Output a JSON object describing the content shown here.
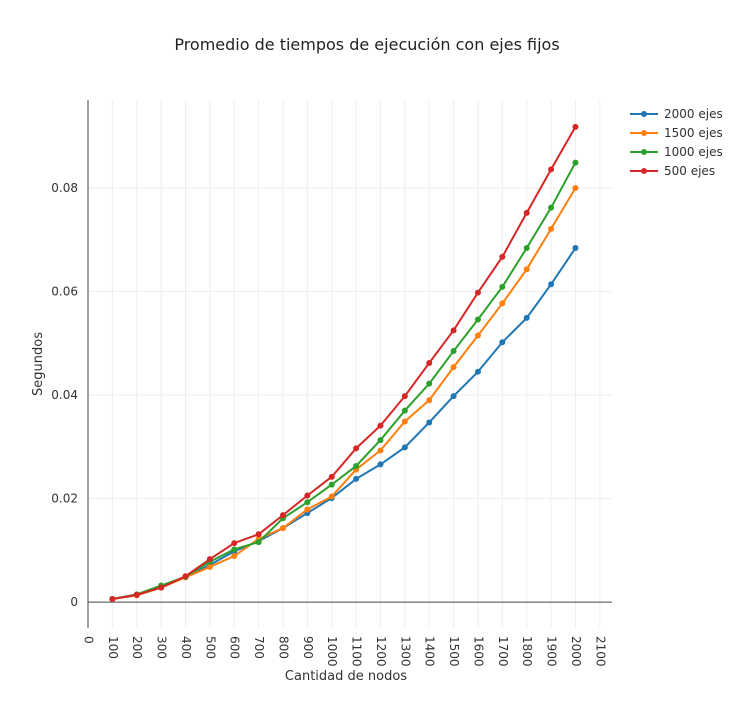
{
  "chart_data": {
    "type": "line",
    "title": "Promedio de tiempos de ejecución con ejes fijos",
    "xlabel": "Cantidad de nodos",
    "ylabel": "Segundos",
    "xlim": [
      0,
      2150
    ],
    "ylim": [
      -0.005,
      0.097
    ],
    "x_ticks": [
      0,
      100,
      200,
      300,
      400,
      500,
      600,
      700,
      800,
      900,
      1000,
      1100,
      1200,
      1300,
      1400,
      1500,
      1600,
      1700,
      1800,
      1900,
      2000,
      2100
    ],
    "y_ticks": [
      0,
      0.02,
      0.04,
      0.06,
      0.08
    ],
    "y_tick_labels": [
      "0",
      "0.02",
      "0.04",
      "0.06",
      "0.08"
    ],
    "grid": true,
    "legend_position": "top-right",
    "x": [
      100,
      200,
      300,
      400,
      500,
      600,
      700,
      800,
      900,
      1000,
      1100,
      1200,
      1300,
      1400,
      1500,
      1600,
      1700,
      1800,
      1900,
      2000
    ],
    "series": [
      {
        "name": "2000 ejes",
        "color": "#1f77b4",
        "values": [
          0.0006,
          0.0014,
          0.0028,
          0.0048,
          0.0072,
          0.0098,
          0.0118,
          0.0143,
          0.0172,
          0.0201,
          0.0238,
          0.0266,
          0.0299,
          0.0347,
          0.0398,
          0.0445,
          0.0502,
          0.0549,
          0.0614,
          0.0684
        ]
      },
      {
        "name": "1500 ejes",
        "color": "#ff7f0e",
        "values": [
          0.0006,
          0.0013,
          0.0028,
          0.0048,
          0.0068,
          0.0089,
          0.0122,
          0.0143,
          0.0179,
          0.0204,
          0.0256,
          0.0293,
          0.0349,
          0.039,
          0.0454,
          0.0515,
          0.0577,
          0.0643,
          0.0721,
          0.08
        ]
      },
      {
        "name": "1000 ejes",
        "color": "#2ca02c",
        "values": [
          0.0006,
          0.0015,
          0.0032,
          0.0049,
          0.0078,
          0.0102,
          0.0116,
          0.0162,
          0.0193,
          0.0227,
          0.0263,
          0.0313,
          0.037,
          0.0422,
          0.0485,
          0.0546,
          0.0609,
          0.0684,
          0.0762,
          0.0849
        ]
      },
      {
        "name": "500 ejes",
        "color": "#d62728",
        "values": [
          0.0006,
          0.0014,
          0.0028,
          0.005,
          0.0083,
          0.0114,
          0.0131,
          0.0168,
          0.0206,
          0.0242,
          0.0297,
          0.0341,
          0.0398,
          0.0462,
          0.0525,
          0.0598,
          0.0667,
          0.0752,
          0.0836,
          0.0918
        ]
      }
    ]
  }
}
